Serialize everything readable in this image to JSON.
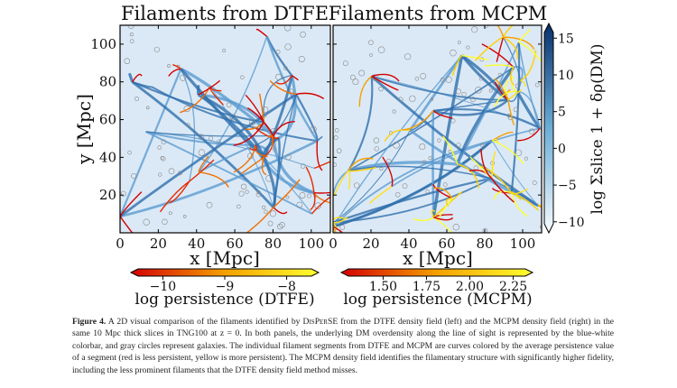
{
  "figure": {
    "panels": [
      {
        "title": "Filaments from DTFE",
        "xlabel": "x [Mpc]",
        "ylabel": "y [Mpc]",
        "xlim": [
          0,
          110
        ],
        "ylim": [
          0,
          110
        ],
        "xticks": [
          "0",
          "20",
          "40",
          "60",
          "80",
          "100"
        ],
        "yticks": [
          "20",
          "40",
          "60",
          "80",
          "100"
        ],
        "colorbar": {
          "label": "log persistence (DTFE)",
          "ticks": [
            "−10",
            "−9",
            "−8"
          ],
          "tick_values": [
            -10,
            -9,
            -8
          ],
          "range": [
            -10.4,
            -7.6
          ],
          "colors": [
            "#d40000",
            "#f5a000",
            "#ffff30"
          ]
        }
      },
      {
        "title": "Filaments from MCPM",
        "xlabel": "x [Mpc]",
        "xlim": [
          0,
          110
        ],
        "ylim": [
          0,
          110
        ],
        "xticks": [
          "0",
          "20",
          "40",
          "60",
          "80",
          "100"
        ],
        "colorbar": {
          "label": "log persistence (MCPM)",
          "ticks": [
            "1.50",
            "1.75",
            "2.00",
            "2.25"
          ],
          "tick_values": [
            1.5,
            1.75,
            2.0,
            2.25
          ],
          "range": [
            1.3,
            2.32
          ],
          "colors": [
            "#d40000",
            "#f5a000",
            "#ffff30"
          ]
        }
      }
    ],
    "density_colorbar": {
      "label": "log Σslice 1 + δρ(DM)",
      "ticks": [
        "15",
        "10",
        "5",
        "0",
        "−5",
        "−10"
      ],
      "tick_values": [
        15,
        10,
        5,
        0,
        -5,
        -10
      ],
      "range": [
        -11.5,
        17
      ],
      "colors": [
        "#f7fbff",
        "#6baed6",
        "#08306b"
      ]
    }
  },
  "caption": {
    "label": "Figure 4.",
    "text_1": " A 2D visual comparison of the filaments identified by ",
    "code": "DisPerSE",
    "text_2": " from the DTFE density field (left) and the MCPM density field (right) in the same 10 Mpc thick slices in TNG100 at z = 0. In both panels, the underlying DM overdensity along the line of sight is represented by the blue-white colorbar, and gray circles represent galaxies. The individual filament segments from DTFE and MCPM are curves colored by the average persistence value of a segment (red is less persistent, yellow is more persistent). The MCPM density field identifies the filamentary structure with significantly higher fidelity, including the less prominent filaments that the DTFE density field method misses."
  }
}
